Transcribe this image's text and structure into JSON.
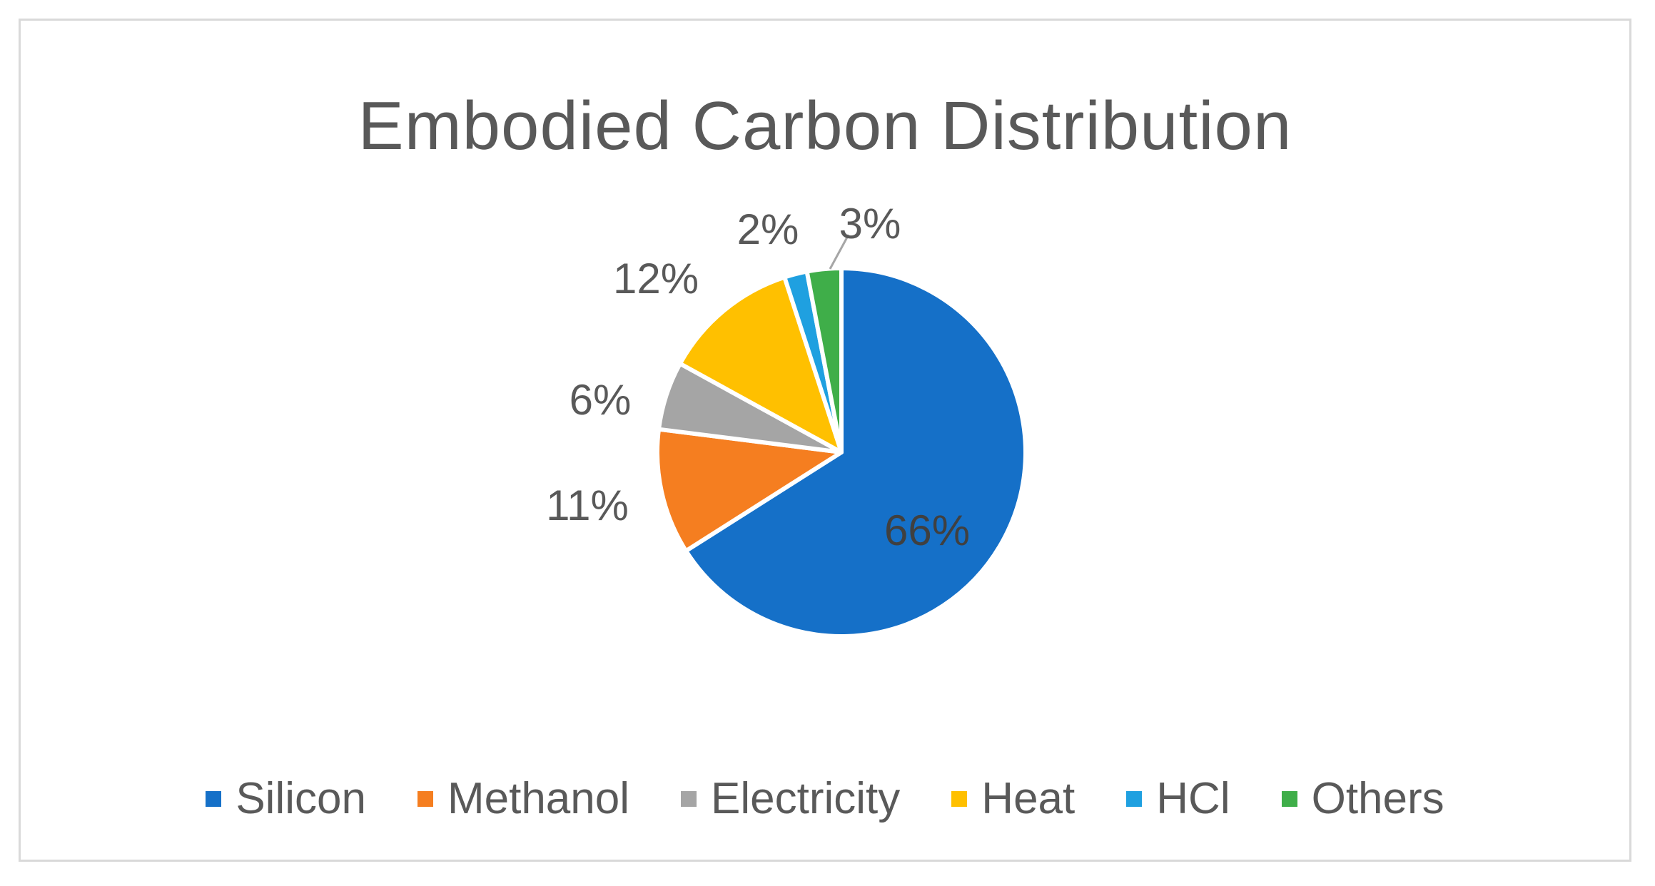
{
  "chart_data": {
    "type": "pie",
    "title": "Embodied Carbon Distribution",
    "legend_position": "bottom",
    "categories": [
      "Silicon",
      "Methanol",
      "Electricity",
      "Heat",
      "HCl",
      "Others"
    ],
    "values": [
      66,
      11,
      6,
      12,
      2,
      3
    ],
    "labels": [
      "66%",
      "11%",
      "6%",
      "12%",
      "2%",
      "3%"
    ],
    "colors": [
      "#1570c8",
      "#f57e20",
      "#a5a5a5",
      "#ffc000",
      "#1fa0e0",
      "#3fae49"
    ]
  }
}
